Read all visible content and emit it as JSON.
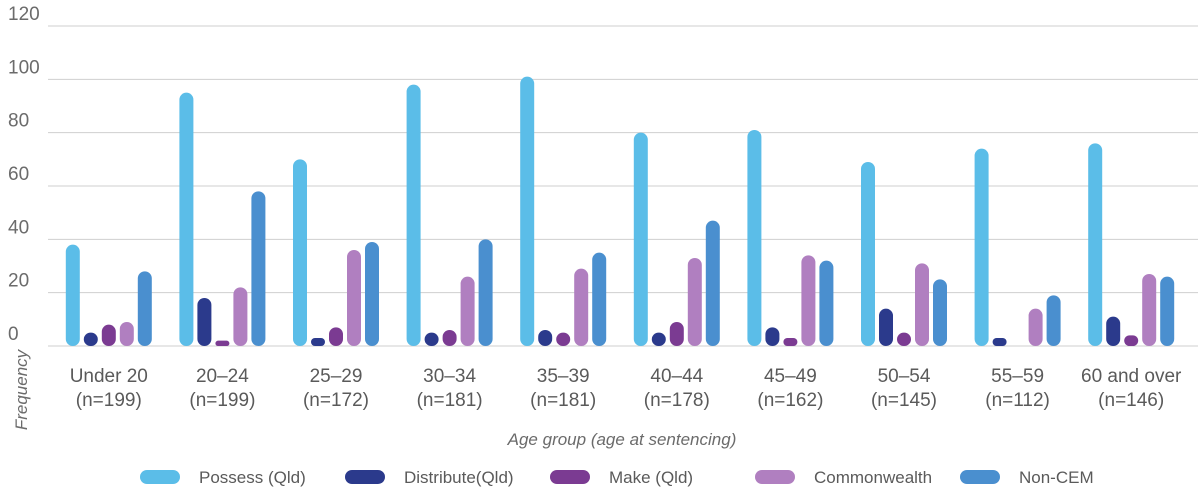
{
  "chart_data": {
    "type": "bar",
    "xlabel": "Age group (age at sentencing)",
    "ylabel": "Frequency",
    "ylim": [
      0,
      120
    ],
    "yticks": [
      0,
      20,
      40,
      60,
      80,
      100,
      120
    ],
    "grid": true,
    "legend_position": "bottom",
    "categories": [
      [
        "Under 20",
        "(n=199)"
      ],
      [
        "20–24",
        "(n=199)"
      ],
      [
        "25–29",
        "(n=172)"
      ],
      [
        "30–34",
        "(n=181)"
      ],
      [
        "35–39",
        "(n=181)"
      ],
      [
        "40–44",
        "(n=178)"
      ],
      [
        "45–49",
        "(n=162)"
      ],
      [
        "50–54",
        "(n=145)"
      ],
      [
        "55–59",
        "(n=112)"
      ],
      [
        "60 and over",
        "(n=146)"
      ]
    ],
    "series": [
      {
        "name": "Possess (Qld)",
        "color": "#5bbde8",
        "values": [
          38,
          95,
          70,
          98,
          101,
          80,
          81,
          69,
          74,
          76
        ]
      },
      {
        "name": "Distribute(Qld)",
        "color": "#2b3a8c",
        "values": [
          5,
          18,
          3,
          5,
          6,
          5,
          7,
          14,
          3,
          11
        ]
      },
      {
        "name": "Make (Qld)",
        "color": "#7b3b92",
        "values": [
          8,
          2,
          7,
          6,
          5,
          9,
          3,
          5,
          0,
          4
        ]
      },
      {
        "name": "Commonwealth",
        "color": "#b07fc0",
        "values": [
          9,
          22,
          36,
          26,
          29,
          33,
          34,
          31,
          14,
          27
        ]
      },
      {
        "name": "Non-CEM",
        "color": "#4a8fcf",
        "values": [
          28,
          58,
          39,
          40,
          35,
          47,
          32,
          25,
          19,
          26
        ]
      }
    ]
  }
}
